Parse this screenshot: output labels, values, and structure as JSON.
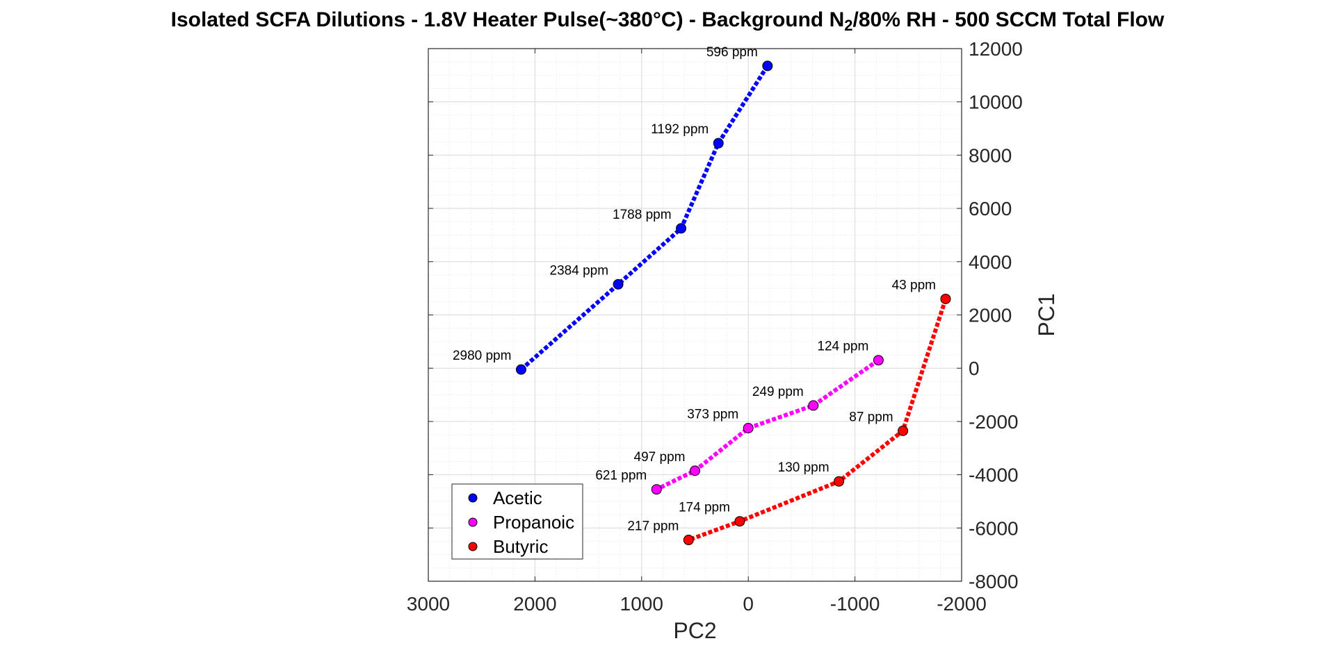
{
  "chart_data": {
    "type": "line",
    "title": {
      "pre": "Isolated SCFA Dilutions - 1.8V Heater Pulse(~380°C) - Background N",
      "sub": "2",
      "post": "/80% RH - 500 SCCM Total Flow"
    },
    "xlabel": "PC2",
    "ylabel": "PC1",
    "xlim": [
      3000,
      -2000
    ],
    "ylim": [
      -8000,
      12000
    ],
    "x_reversed": true,
    "y_axis_location": "right",
    "xticks": [
      3000,
      2000,
      1000,
      0,
      -1000,
      -2000
    ],
    "yticks": [
      12000,
      10000,
      8000,
      6000,
      4000,
      2000,
      0,
      -2000,
      -4000,
      -6000,
      -8000
    ],
    "grid": true,
    "minor_grid": true,
    "legend_location": "bottom-left",
    "series": [
      {
        "name": "Acetic",
        "color": "#0000ff",
        "x": [
          -180,
          280,
          630,
          1220,
          2130
        ],
        "y": [
          11350,
          8450,
          5250,
          3150,
          -50
        ],
        "labels": [
          "596 ppm",
          "1192 ppm",
          "1788 ppm",
          "2384 ppm",
          "2980 ppm"
        ]
      },
      {
        "name": "Propanoic",
        "color": "#ff00ff",
        "x": [
          -1220,
          -610,
          0,
          500,
          860
        ],
        "y": [
          300,
          -1400,
          -2250,
          -3850,
          -4550
        ],
        "labels": [
          "124 ppm",
          "249 ppm",
          "373 ppm",
          "497 ppm",
          "621 ppm"
        ]
      },
      {
        "name": "Butyric",
        "color": "#ff0000",
        "x": [
          -1850,
          -1450,
          -850,
          80,
          560
        ],
        "y": [
          2600,
          -2350,
          -4250,
          -5750,
          -6450
        ],
        "labels": [
          "43 ppm",
          "87 ppm",
          "130 ppm",
          "174 ppm",
          "217 ppm"
        ]
      }
    ]
  }
}
